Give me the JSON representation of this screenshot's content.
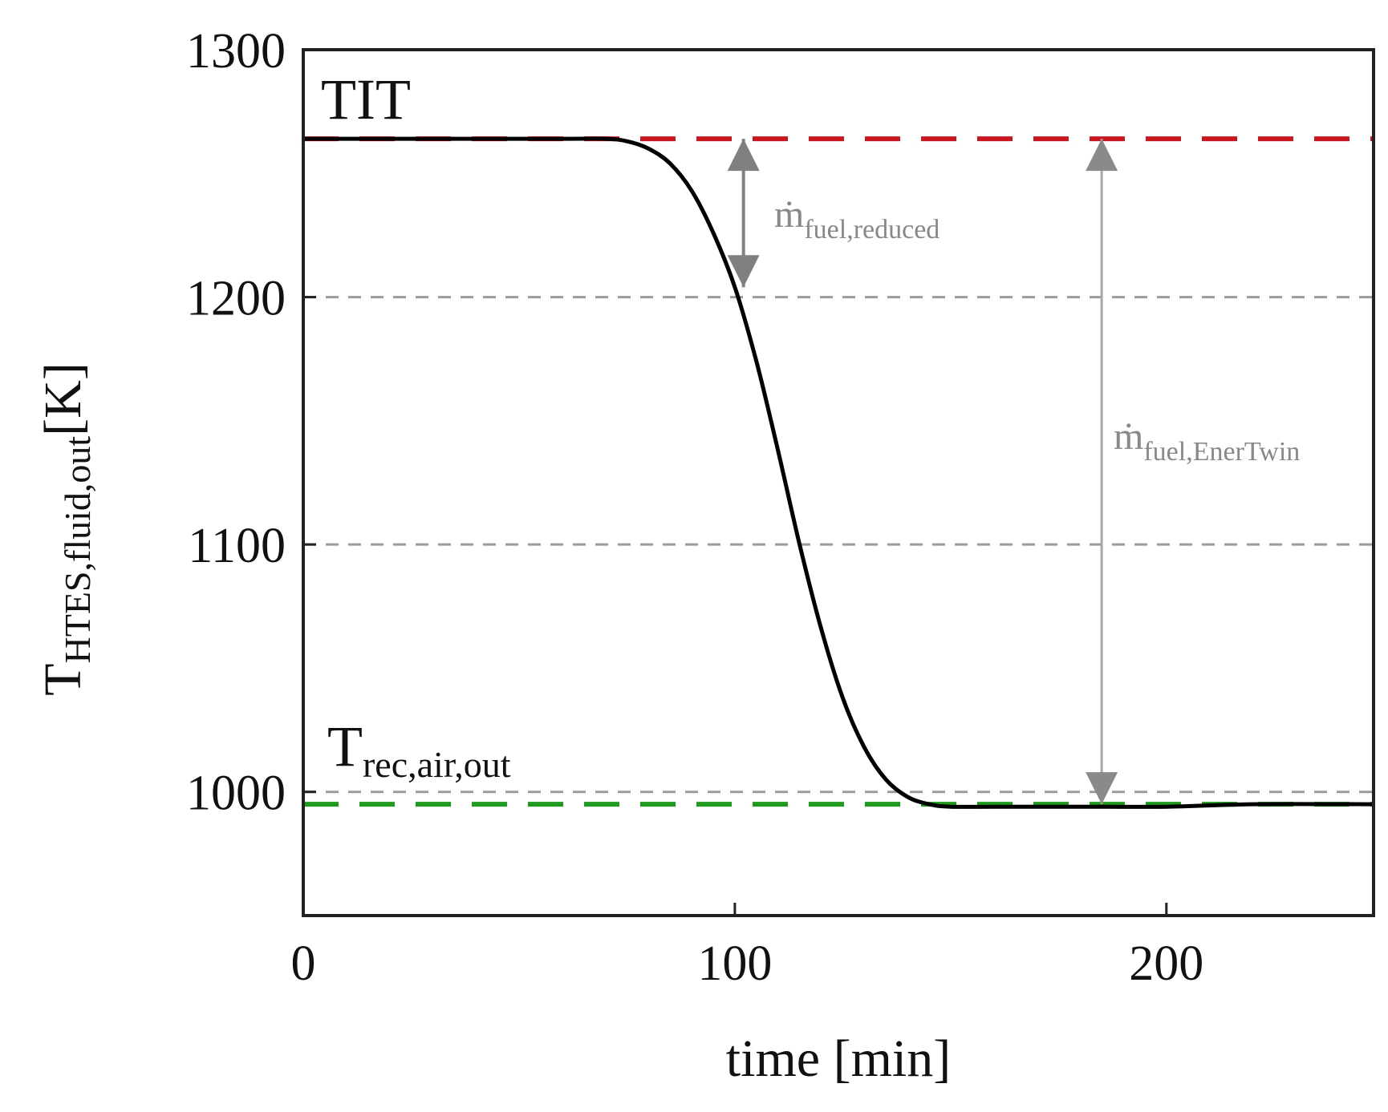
{
  "chart_data": {
    "type": "line",
    "xlabel": "time [min]",
    "ylabel": {
      "main": "T",
      "subscript": "HTES,fluid,out",
      "unit": "[K]"
    },
    "xlim": [
      0,
      248
    ],
    "ylim": [
      950,
      1300
    ],
    "x_ticks": [
      0,
      100,
      200
    ],
    "y_ticks": [
      1000,
      1100,
      1200,
      1300
    ],
    "grid_y_dashed": [
      1000,
      1100,
      1200
    ],
    "series": [
      {
        "name": "T_HTES,fluid,out",
        "color": "#000000",
        "x": [
          0,
          20,
          40,
          60,
          70,
          75,
          80,
          85,
          90,
          95,
          100,
          105,
          110,
          115,
          120,
          125,
          130,
          135,
          140,
          145,
          150,
          160,
          180,
          200,
          220,
          248
        ],
        "y": [
          1264,
          1264,
          1264,
          1264,
          1264,
          1263,
          1260,
          1254,
          1243,
          1226,
          1204,
          1174,
          1138,
          1100,
          1066,
          1038,
          1018,
          1005,
          998,
          995,
          994,
          994,
          994,
          994,
          995,
          995
        ]
      }
    ],
    "reference_lines": [
      {
        "name": "TIT",
        "value": 1264,
        "color": "#c8171e",
        "label": "TIT"
      },
      {
        "name": "T_rec,air,out",
        "value": 995,
        "color": "#1f9a1f",
        "label_main": "T",
        "label_sub": "rec,air,out"
      }
    ],
    "annotations": [
      {
        "name": "m_fuel_reduced",
        "x": 102,
        "y_from": 1264,
        "y_to": 1204,
        "label_main": "ṁ",
        "label_sub": "fuel,reduced",
        "color": "#888888"
      },
      {
        "name": "m_fuel_enertwin",
        "x": 185,
        "y_from": 1264,
        "y_to": 995,
        "label_main": "ṁ",
        "label_sub": "fuel,EnerTwin",
        "color": "#888888"
      }
    ]
  }
}
